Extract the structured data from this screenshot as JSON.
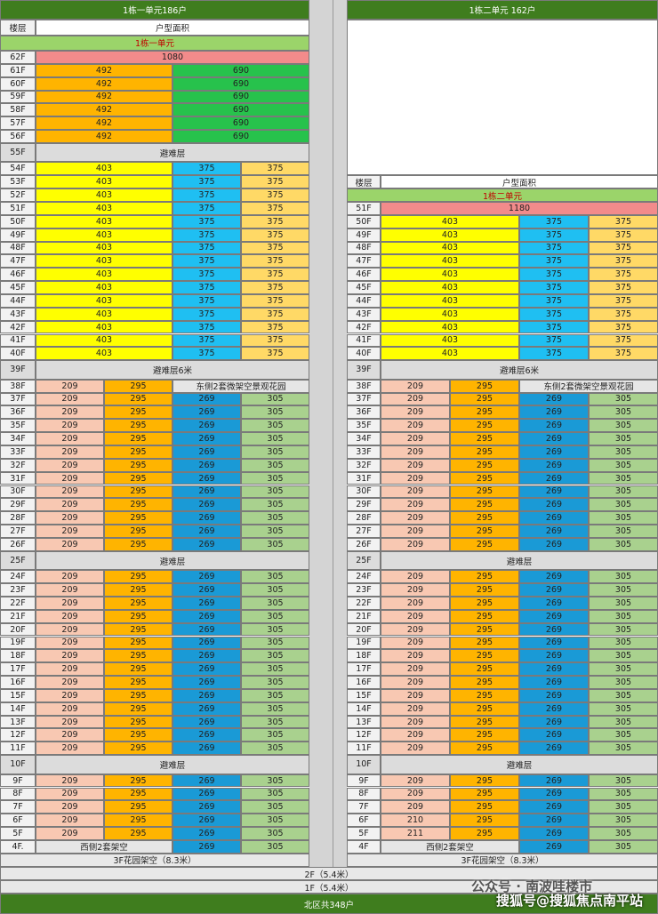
{
  "blocks": [
    {
      "title": "1栋一单元186户",
      "header": [
        "楼层",
        "户型面积"
      ],
      "unit": "1栋一单元",
      "rows": [
        {
          "floor": "62F",
          "cells": [
            1080
          ]
        },
        {
          "floor": "61F",
          "cells": [
            492,
            690
          ]
        },
        {
          "floor": "60F",
          "cells": [
            492,
            690
          ]
        },
        {
          "floor": "59F",
          "cells": [
            492,
            690
          ]
        },
        {
          "floor": "58F",
          "cells": [
            492,
            690
          ]
        },
        {
          "floor": "57F",
          "cells": [
            492,
            690
          ]
        },
        {
          "floor": "56F",
          "cells": [
            492,
            690
          ]
        },
        {
          "floor": "55F",
          "cells": [
            "避难层"
          ]
        },
        {
          "floor": "54F",
          "cells": [
            403,
            375,
            375
          ]
        },
        {
          "floor": "53F",
          "cells": [
            403,
            375,
            375
          ]
        },
        {
          "floor": "52F",
          "cells": [
            403,
            375,
            375
          ]
        },
        {
          "floor": "51F",
          "cells": [
            403,
            375,
            375
          ]
        },
        {
          "floor": "50F",
          "cells": [
            403,
            375,
            375
          ]
        },
        {
          "floor": "49F",
          "cells": [
            403,
            375,
            375
          ]
        },
        {
          "floor": "48F",
          "cells": [
            403,
            375,
            375
          ]
        },
        {
          "floor": "47F",
          "cells": [
            403,
            375,
            375
          ]
        },
        {
          "floor": "46F",
          "cells": [
            403,
            375,
            375
          ]
        },
        {
          "floor": "45F",
          "cells": [
            403,
            375,
            375
          ]
        },
        {
          "floor": "44F",
          "cells": [
            403,
            375,
            375
          ]
        },
        {
          "floor": "43F",
          "cells": [
            403,
            375,
            375
          ]
        },
        {
          "floor": "42F",
          "cells": [
            403,
            375,
            375
          ]
        },
        {
          "floor": "41F",
          "cells": [
            403,
            375,
            375
          ]
        },
        {
          "floor": "40F",
          "cells": [
            403,
            375,
            375
          ]
        },
        {
          "floor": "39F",
          "cells": [
            "避难层6米"
          ]
        },
        {
          "floor": "38F",
          "cells": [
            209,
            295,
            "东侧2套微架空景观花园"
          ]
        },
        {
          "floor": "37F",
          "cells": [
            209,
            295,
            269,
            305
          ]
        },
        {
          "floor": "36F",
          "cells": [
            209,
            295,
            269,
            305
          ]
        },
        {
          "floor": "35F",
          "cells": [
            209,
            295,
            269,
            305
          ]
        },
        {
          "floor": "34F",
          "cells": [
            209,
            295,
            269,
            305
          ]
        },
        {
          "floor": "33F",
          "cells": [
            209,
            295,
            269,
            305
          ]
        },
        {
          "floor": "32F",
          "cells": [
            209,
            295,
            269,
            305
          ]
        },
        {
          "floor": "31F",
          "cells": [
            209,
            295,
            269,
            305
          ]
        },
        {
          "floor": "30F",
          "cells": [
            209,
            295,
            269,
            305
          ]
        },
        {
          "floor": "29F",
          "cells": [
            209,
            295,
            269,
            305
          ]
        },
        {
          "floor": "28F",
          "cells": [
            209,
            295,
            269,
            305
          ]
        },
        {
          "floor": "27F",
          "cells": [
            209,
            295,
            269,
            305
          ]
        },
        {
          "floor": "26F",
          "cells": [
            209,
            295,
            269,
            305
          ]
        },
        {
          "floor": "25F",
          "cells": [
            "避难层"
          ]
        },
        {
          "floor": "24F",
          "cells": [
            209,
            295,
            269,
            305
          ]
        },
        {
          "floor": "23F",
          "cells": [
            209,
            295,
            269,
            305
          ]
        },
        {
          "floor": "22F",
          "cells": [
            209,
            295,
            269,
            305
          ]
        },
        {
          "floor": "21F",
          "cells": [
            209,
            295,
            269,
            305
          ]
        },
        {
          "floor": "20F",
          "cells": [
            209,
            295,
            269,
            305
          ]
        },
        {
          "floor": "19F",
          "cells": [
            209,
            295,
            269,
            305
          ]
        },
        {
          "floor": "18F",
          "cells": [
            209,
            295,
            269,
            305
          ]
        },
        {
          "floor": "17F",
          "cells": [
            209,
            295,
            269,
            305
          ]
        },
        {
          "floor": "16F",
          "cells": [
            209,
            295,
            269,
            305
          ]
        },
        {
          "floor": "15F",
          "cells": [
            209,
            295,
            269,
            305
          ]
        },
        {
          "floor": "14F",
          "cells": [
            209,
            295,
            269,
            305
          ]
        },
        {
          "floor": "13F",
          "cells": [
            209,
            295,
            269,
            305
          ]
        },
        {
          "floor": "12F",
          "cells": [
            209,
            295,
            269,
            305
          ]
        },
        {
          "floor": "11F",
          "cells": [
            209,
            295,
            269,
            305
          ]
        },
        {
          "floor": "10F",
          "cells": [
            "避难层"
          ]
        },
        {
          "floor": "9F",
          "cells": [
            209,
            295,
            269,
            305
          ]
        },
        {
          "floor": "8F",
          "cells": [
            209,
            295,
            269,
            305
          ]
        },
        {
          "floor": "7F",
          "cells": [
            209,
            295,
            269,
            305
          ]
        },
        {
          "floor": "6F",
          "cells": [
            209,
            295,
            269,
            305
          ]
        },
        {
          "floor": "5F",
          "cells": [
            209,
            295,
            269,
            305
          ]
        },
        {
          "floor": "4F.",
          "cells": [
            "西侧2套架空",
            269,
            305
          ]
        }
      ],
      "garden": "3F花园架空（8.3米）"
    },
    {
      "title": "1栋二单元 162户",
      "header": [
        "楼层",
        "户型面积"
      ],
      "unit": "1栋二单元",
      "rows": [
        {
          "floor": "51F",
          "cells": [
            1180
          ]
        },
        {
          "floor": "50F",
          "cells": [
            403,
            375,
            375
          ]
        },
        {
          "floor": "49F",
          "cells": [
            403,
            375,
            375
          ]
        },
        {
          "floor": "48F",
          "cells": [
            403,
            375,
            375
          ]
        },
        {
          "floor": "47F",
          "cells": [
            403,
            375,
            375
          ]
        },
        {
          "floor": "46F",
          "cells": [
            403,
            375,
            375
          ]
        },
        {
          "floor": "45F",
          "cells": [
            403,
            375,
            375
          ]
        },
        {
          "floor": "44F",
          "cells": [
            403,
            375,
            375
          ]
        },
        {
          "floor": "43F",
          "cells": [
            403,
            375,
            375
          ]
        },
        {
          "floor": "42F",
          "cells": [
            403,
            375,
            375
          ]
        },
        {
          "floor": "41F",
          "cells": [
            403,
            375,
            375
          ]
        },
        {
          "floor": "40F",
          "cells": [
            403,
            375,
            375
          ]
        },
        {
          "floor": "39F",
          "cells": [
            "避难层6米"
          ]
        },
        {
          "floor": "38F",
          "cells": [
            209,
            295,
            "东侧2套微架空景观花园"
          ]
        },
        {
          "floor": "37F",
          "cells": [
            209,
            295,
            269,
            305
          ]
        },
        {
          "floor": "36F",
          "cells": [
            209,
            295,
            269,
            305
          ]
        },
        {
          "floor": "35F",
          "cells": [
            209,
            295,
            269,
            305
          ]
        },
        {
          "floor": "34F",
          "cells": [
            209,
            295,
            269,
            305
          ]
        },
        {
          "floor": "33F",
          "cells": [
            209,
            295,
            269,
            305
          ]
        },
        {
          "floor": "32F",
          "cells": [
            209,
            295,
            269,
            305
          ]
        },
        {
          "floor": "31F",
          "cells": [
            209,
            295,
            269,
            305
          ]
        },
        {
          "floor": "30F",
          "cells": [
            209,
            295,
            269,
            305
          ]
        },
        {
          "floor": "29F",
          "cells": [
            209,
            295,
            269,
            305
          ]
        },
        {
          "floor": "28F",
          "cells": [
            209,
            295,
            269,
            305
          ]
        },
        {
          "floor": "27F",
          "cells": [
            209,
            295,
            269,
            305
          ]
        },
        {
          "floor": "26F",
          "cells": [
            209,
            295,
            269,
            305
          ]
        },
        {
          "floor": "25F",
          "cells": [
            "避难层"
          ]
        },
        {
          "floor": "24F",
          "cells": [
            209,
            295,
            269,
            305
          ]
        },
        {
          "floor": "23F",
          "cells": [
            209,
            295,
            269,
            305
          ]
        },
        {
          "floor": "22F",
          "cells": [
            209,
            295,
            269,
            305
          ]
        },
        {
          "floor": "21F",
          "cells": [
            209,
            295,
            269,
            305
          ]
        },
        {
          "floor": "20F",
          "cells": [
            209,
            295,
            269,
            305
          ]
        },
        {
          "floor": "19F",
          "cells": [
            209,
            295,
            269,
            305
          ]
        },
        {
          "floor": "18F",
          "cells": [
            209,
            295,
            269,
            305
          ]
        },
        {
          "floor": "17F",
          "cells": [
            209,
            295,
            269,
            305
          ]
        },
        {
          "floor": "16F",
          "cells": [
            209,
            295,
            269,
            305
          ]
        },
        {
          "floor": "15F",
          "cells": [
            209,
            295,
            269,
            305
          ]
        },
        {
          "floor": "14F",
          "cells": [
            209,
            295,
            269,
            305
          ]
        },
        {
          "floor": "13F",
          "cells": [
            209,
            295,
            269,
            305
          ]
        },
        {
          "floor": "12F",
          "cells": [
            209,
            295,
            269,
            305
          ]
        },
        {
          "floor": "11F",
          "cells": [
            209,
            295,
            269,
            305
          ]
        },
        {
          "floor": "10F",
          "cells": [
            "避难层"
          ]
        },
        {
          "floor": "9F",
          "cells": [
            209,
            295,
            269,
            305
          ]
        },
        {
          "floor": "8F",
          "cells": [
            209,
            295,
            269,
            305
          ]
        },
        {
          "floor": "7F",
          "cells": [
            209,
            295,
            269,
            305
          ]
        },
        {
          "floor": "6F",
          "cells": [
            210,
            295,
            269,
            305
          ]
        },
        {
          "floor": "5F",
          "cells": [
            211,
            295,
            269,
            305
          ]
        },
        {
          "floor": "4F",
          "cells": [
            "西侧2套架空",
            269,
            305
          ]
        }
      ],
      "garden": "3F花园架空（8.3米）"
    }
  ],
  "bottom": {
    "rows": [
      "2F（5.4米）",
      "1F（5.4米）"
    ],
    "total": "北区共348户"
  },
  "watermark": [
    "公众号 · 南波哇楼市",
    "搜狐号@搜狐焦点南平站"
  ]
}
